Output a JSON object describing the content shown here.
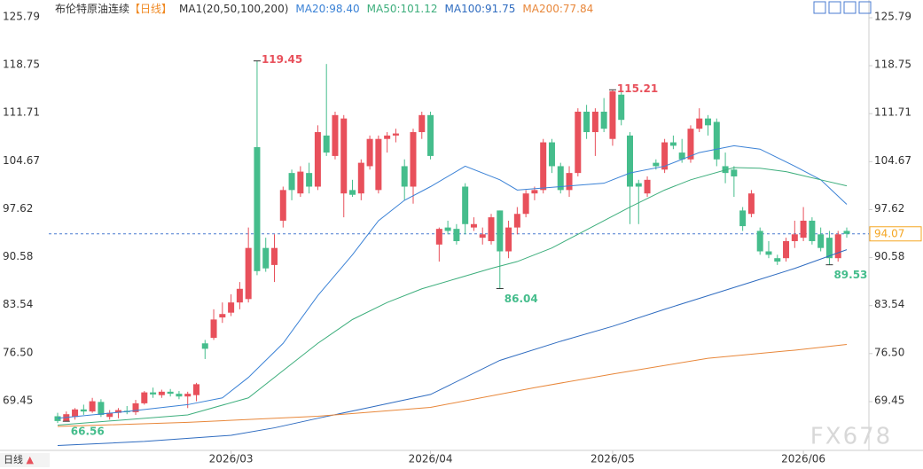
{
  "chart_data": {
    "type": "candlestick",
    "title": "布伦特原油连续",
    "period": "【日线】",
    "indicator": "MA1(20,50,100,200)",
    "bottom_label": "日线",
    "watermark": "FX678",
    "ylim": [
      62.29,
      127.35
    ],
    "yticks": [
      125.79,
      118.75,
      111.71,
      104.67,
      97.62,
      90.58,
      83.54,
      {
        "value": 76.5,
        "label": "76.50"
      },
      69.45
    ],
    "up_color": "#e8505b",
    "down_color": "#45bd8c",
    "categories": [
      null,
      null,
      null,
      null,
      null,
      null,
      null,
      null,
      null,
      null,
      null,
      null,
      null,
      null,
      null,
      null,
      null,
      null,
      null,
      null,
      "2026/03",
      null,
      null,
      null,
      null,
      null,
      null,
      null,
      null,
      null,
      null,
      null,
      null,
      null,
      null,
      null,
      null,
      null,
      null,
      null,
      null,
      null,
      null,
      "2026/04",
      null,
      null,
      null,
      null,
      null,
      null,
      null,
      null,
      null,
      null,
      null,
      null,
      null,
      null,
      null,
      null,
      null,
      null,
      null,
      null,
      "2026/05",
      null,
      null,
      null,
      null,
      null,
      null,
      null,
      null,
      null,
      null,
      null,
      null,
      null,
      null,
      null,
      null,
      null,
      null,
      null,
      null,
      null,
      "2026/06",
      null,
      null,
      null,
      null,
      null
    ],
    "open": [
      67.3,
      66.6,
      67.2,
      68.3,
      68.0,
      69.4,
      67.2,
      67.8,
      68.1,
      67.9,
      69.2,
      70.8,
      70.4,
      70.9,
      70.6,
      70.2,
      70.4,
      78.0,
      78.8,
      81.8,
      82.5,
      84.0,
      84.5,
      106.8,
      92.0,
      89.5,
      96.0,
      103.0,
      100.0,
      103.0,
      101.0,
      108.5,
      105.5,
      100.0,
      100.5,
      100.0,
      104.0,
      100.5,
      108.0,
      108.5,
      104.0,
      101.0,
      109.0,
      111.5,
      92.5,
      95.0,
      94.8,
      101.0,
      95.0,
      93.5,
      93.0,
      97.5,
      91.5,
      95.0,
      97.0,
      100.0,
      100.5,
      107.5,
      104.0,
      100.5,
      103.0,
      112.0,
      109.0,
      112.0,
      108.0,
      114.5,
      108.5,
      101.5,
      100.0,
      104.5,
      103.5,
      107.5,
      106.0,
      105.0,
      109.5,
      111.0,
      110.5,
      104.0,
      103.5,
      97.5,
      97.0,
      94.5,
      91.5,
      90.5,
      90.5,
      93.0,
      93.5,
      96.0,
      94.0,
      93.5,
      90.5,
      94.5
    ],
    "high": [
      67.8,
      68.0,
      68.5,
      69.0,
      70.0,
      69.8,
      68.2,
      68.5,
      68.8,
      69.7,
      71.0,
      71.5,
      71.2,
      71.3,
      71.0,
      70.9,
      72.2,
      78.5,
      83.0,
      84.0,
      85.2,
      87.0,
      95.0,
      119.45,
      93.5,
      94.0,
      101.0,
      103.5,
      104.0,
      104.5,
      110.0,
      119.0,
      112.0,
      111.5,
      102.0,
      105.0,
      108.5,
      108.5,
      109.0,
      109.5,
      105.0,
      109.5,
      112.0,
      112.0,
      95.0,
      96.0,
      95.5,
      101.5,
      96.5,
      95.0,
      97.0,
      97.5,
      96.0,
      98.0,
      100.5,
      101.0,
      108.0,
      108.0,
      104.5,
      104.0,
      112.5,
      113.0,
      112.5,
      114.0,
      115.21,
      115.0,
      109.0,
      102.0,
      102.5,
      105.0,
      108.0,
      108.5,
      108.0,
      110.0,
      112.5,
      111.5,
      111.0,
      106.0,
      104.0,
      98.0,
      100.5,
      95.0,
      93.0,
      91.0,
      93.5,
      96.0,
      98.0,
      96.5,
      95.0,
      94.5,
      94.5,
      95.0
    ],
    "low": [
      66.3,
      66.56,
      66.8,
      67.5,
      67.8,
      67.2,
      66.8,
      67.0,
      67.6,
      67.5,
      69.0,
      70.0,
      70.0,
      70.2,
      69.8,
      68.5,
      69.5,
      75.7,
      78.5,
      81.0,
      82.0,
      83.0,
      84.0,
      88.0,
      88.5,
      87.0,
      95.0,
      99.0,
      99.5,
      100.0,
      100.5,
      105.5,
      105.0,
      96.5,
      99.5,
      99.0,
      103.5,
      100.0,
      106.0,
      107.5,
      99.0,
      98.5,
      108.0,
      105.0,
      90.0,
      94.0,
      92.5,
      94.0,
      94.5,
      92.5,
      92.5,
      86.04,
      90.5,
      94.0,
      96.5,
      99.0,
      100.0,
      103.0,
      100.0,
      99.5,
      102.5,
      108.0,
      105.5,
      109.0,
      107.0,
      110.0,
      95.5,
      95.5,
      99.5,
      103.5,
      103.0,
      106.5,
      104.5,
      104.5,
      109.0,
      108.5,
      104.0,
      101.5,
      99.5,
      94.5,
      96.5,
      91.0,
      90.5,
      89.5,
      90.0,
      92.0,
      93.0,
      92.5,
      91.5,
      89.53,
      90.0,
      93.5
    ],
    "close": [
      66.6,
      67.6,
      68.3,
      68.0,
      69.5,
      67.5,
      67.8,
      68.2,
      67.9,
      69.2,
      70.8,
      70.5,
      70.9,
      70.6,
      70.2,
      70.6,
      72.0,
      77.2,
      81.5,
      82.3,
      84.0,
      86.0,
      92.0,
      88.6,
      89.0,
      92.0,
      100.5,
      100.5,
      103.2,
      101.0,
      109.0,
      106.0,
      111.5,
      111.0,
      99.8,
      104.5,
      108.0,
      108.0,
      108.5,
      108.8,
      101.0,
      109.0,
      111.5,
      105.5,
      94.8,
      94.5,
      93.0,
      95.5,
      95.5,
      94.0,
      96.5,
      91.5,
      95.0,
      97.0,
      100.0,
      100.5,
      107.5,
      104.0,
      100.5,
      103.0,
      112.0,
      109.0,
      112.0,
      109.5,
      115.0,
      110.8,
      101.0,
      101.0,
      102.0,
      104.0,
      107.5,
      107.0,
      105.0,
      109.5,
      111.0,
      110.0,
      105.0,
      103.0,
      102.5,
      95.2,
      100.0,
      91.5,
      91.0,
      90.0,
      93.0,
      94.0,
      96.0,
      93.0,
      92.0,
      90.5,
      94.0,
      94.07
    ],
    "series": [
      {
        "name": "MA20:98.40",
        "color": "#3b82d6",
        "x": [
          0,
          8,
          15,
          19,
          22,
          26,
          30,
          34,
          37,
          40,
          43,
          47,
          51,
          53,
          58,
          63,
          66,
          70,
          74,
          78,
          81,
          85,
          88,
          91
        ],
        "values": [
          67.0,
          68.0,
          69.0,
          70.0,
          73.0,
          78.0,
          85.0,
          91.0,
          96.0,
          99.0,
          101.0,
          104.0,
          102.0,
          100.5,
          101.0,
          101.5,
          103.0,
          104.0,
          106.0,
          107.0,
          106.5,
          104.0,
          102.0,
          98.4
        ]
      },
      {
        "name": "MA50:101.12",
        "color": "#3dae7c",
        "x": [
          0,
          15,
          22,
          26,
          30,
          34,
          38,
          42,
          46,
          50,
          53,
          57,
          60,
          63,
          66,
          70,
          73,
          78,
          81,
          84,
          88,
          91
        ],
        "values": [
          66.0,
          67.5,
          70.0,
          74.0,
          78.0,
          81.5,
          84.0,
          86.0,
          87.5,
          89.0,
          90.0,
          92.0,
          94.0,
          96.0,
          98.0,
          100.5,
          102.0,
          103.8,
          103.7,
          103.2,
          102.0,
          101.12
        ]
      },
      {
        "name": "MA100:91.75",
        "color": "#2f6cc0",
        "x": [
          0,
          10,
          20,
          25,
          30,
          36,
          43,
          51,
          58,
          64,
          70,
          75,
          80,
          85,
          91
        ],
        "values": [
          63.0,
          63.6,
          64.5,
          65.6,
          67.0,
          68.6,
          70.5,
          75.5,
          78.3,
          80.5,
          83.0,
          85.0,
          87.0,
          89.0,
          91.75
        ]
      },
      {
        "name": "MA200:77.84",
        "color": "#e8873a",
        "x": [
          0,
          15,
          30,
          43,
          55,
          64,
          75,
          85,
          91
        ],
        "values": [
          65.8,
          66.4,
          67.3,
          68.6,
          71.5,
          73.5,
          75.8,
          77.0,
          77.84
        ]
      }
    ],
    "annotations": [
      {
        "value": 119.45,
        "x": 23,
        "color": "#e8505b"
      },
      {
        "value": 115.21,
        "x": 64,
        "color": "#e8505b"
      },
      {
        "value": 86.04,
        "x": 51,
        "color": "#45bd8c"
      },
      {
        "value": 89.53,
        "x": 89,
        "color": "#45bd8c"
      },
      {
        "value": 66.56,
        "x": 1,
        "color": "#45bd8c"
      }
    ],
    "last": 94.07,
    "last_color": "#f5a623"
  }
}
